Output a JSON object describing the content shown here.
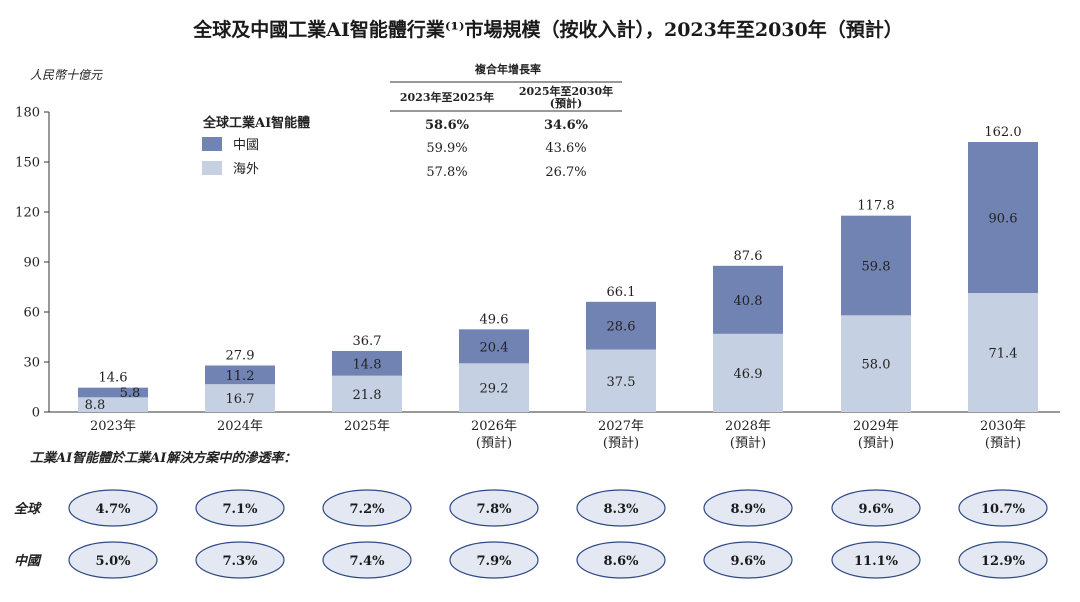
{
  "chart_data": {
    "type": "bar",
    "stacked": true,
    "title": "全球及中國工業AI智能體行業⁽¹⁾市場規模（按收入計），2023年至2030年（預計）",
    "ylabel": "人民幣十億元",
    "ylim": [
      0,
      180
    ],
    "yticks": [
      "0",
      "30",
      "60",
      "90",
      "120",
      "150",
      "180"
    ],
    "categories": [
      "2023年",
      "2024年",
      "2025年",
      "2026年",
      "2027年",
      "2028年",
      "2029年",
      "2030年"
    ],
    "category_notes": [
      "",
      "",
      "",
      "(預計)",
      "(預計)",
      "(預計)",
      "(預計)",
      "(預計)"
    ],
    "series": [
      {
        "name": "海外",
        "color": "#c5d0e2",
        "values": [
          8.8,
          16.7,
          21.8,
          29.2,
          37.5,
          46.9,
          58.0,
          71.4
        ],
        "labels": [
          "8.8",
          "16.7",
          "21.8",
          "29.2",
          "37.5",
          "46.9",
          "58.0",
          "71.4"
        ]
      },
      {
        "name": "中國",
        "color": "#7083b3",
        "values": [
          5.8,
          11.2,
          14.8,
          20.4,
          28.6,
          40.8,
          59.8,
          90.6
        ],
        "labels": [
          "5.8",
          "11.2",
          "14.8",
          "20.4",
          "28.6",
          "40.8",
          "59.8",
          "90.6"
        ]
      }
    ],
    "totals": [
      14.6,
      27.9,
      36.7,
      49.6,
      66.1,
      87.6,
      117.8,
      162.0
    ],
    "total_labels": [
      "14.6",
      "27.9",
      "36.7",
      "49.6",
      "66.1",
      "87.6",
      "117.8",
      "162.0"
    ],
    "legend_title": "全球工業AI智能體",
    "legend_position": "top-left"
  },
  "cagr": {
    "title": "複合年增長率",
    "col1": "2023年至2025年",
    "col2": "2025年至2030年",
    "col2_note": "(預計)",
    "rows": [
      {
        "c1": "58.6%",
        "c2": "34.6%"
      },
      {
        "c1": "59.9%",
        "c2": "43.6%"
      },
      {
        "c1": "57.8%",
        "c2": "26.7%"
      }
    ]
  },
  "penetration": {
    "title": "工業AI智能體於工業AI解決方案中的滲透率：",
    "rows": [
      {
        "label": "全球",
        "values": [
          "4.7%",
          "7.1%",
          "7.2%",
          "7.8%",
          "8.3%",
          "8.9%",
          "9.6%",
          "10.7%"
        ]
      },
      {
        "label": "中國",
        "values": [
          "5.0%",
          "7.3%",
          "7.4%",
          "7.9%",
          "8.6%",
          "9.6%",
          "11.1%",
          "12.9%"
        ]
      }
    ],
    "pill_color": "#e3e8f2",
    "pill_border": "#2e4a86"
  }
}
